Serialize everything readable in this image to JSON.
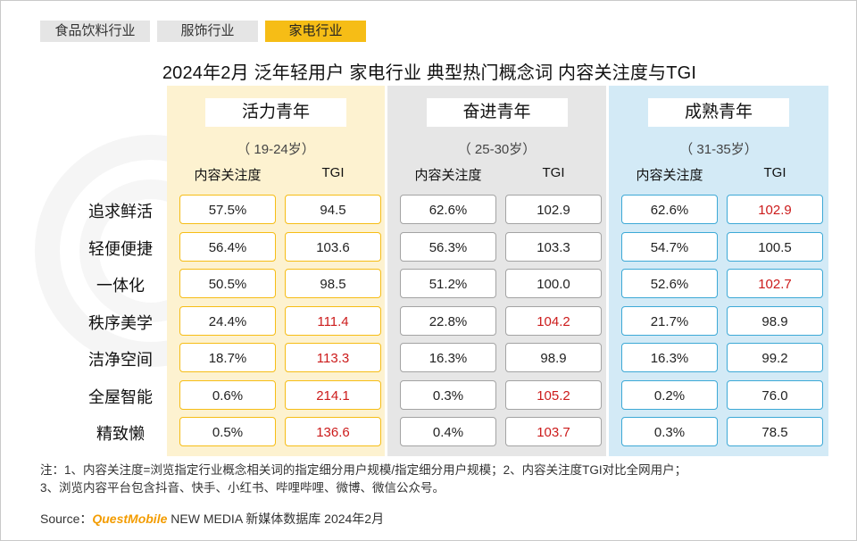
{
  "tabs": [
    {
      "label": "食品饮料行业",
      "active": false
    },
    {
      "label": "服饰行业",
      "active": false
    },
    {
      "label": "家电行业",
      "active": true
    }
  ],
  "colors": {
    "accent": "#f6bd16",
    "youth_bg": "#fdf2d0",
    "striving_bg": "#e6e6e6",
    "mature_bg": "#d3eaf6",
    "highlight": "#cc1b1b"
  },
  "chart_data": {
    "type": "table",
    "title": "2024年2月 泛年轻用户 家电行业 典型热门概念词 内容关注度与TGI",
    "row_labels": [
      "追求鲜活",
      "轻便便捷",
      "一体化",
      "秩序美学",
      "洁净空间",
      "全屋智能",
      "精致懒"
    ],
    "column_headers": [
      "内容关注度",
      "TGI"
    ],
    "groups": [
      {
        "name": "活力青年",
        "age": "（ 19-24岁）",
        "attention": [
          "57.5%",
          "56.4%",
          "50.5%",
          "24.4%",
          "18.7%",
          "0.6%",
          "0.5%"
        ],
        "tgi": [
          "94.5",
          "103.6",
          "98.5",
          "111.4",
          "113.3",
          "214.1",
          "136.6"
        ],
        "tgi_highlight": [
          false,
          false,
          false,
          true,
          true,
          true,
          true
        ]
      },
      {
        "name": "奋进青年",
        "age": "（ 25-30岁）",
        "attention": [
          "62.6%",
          "56.3%",
          "51.2%",
          "22.8%",
          "16.3%",
          "0.3%",
          "0.4%"
        ],
        "tgi": [
          "102.9",
          "103.3",
          "100.0",
          "104.2",
          "98.9",
          "105.2",
          "103.7"
        ],
        "tgi_highlight": [
          false,
          false,
          false,
          true,
          false,
          true,
          true
        ]
      },
      {
        "name": "成熟青年",
        "age": "（ 31-35岁）",
        "attention": [
          "62.6%",
          "54.7%",
          "52.6%",
          "21.7%",
          "16.3%",
          "0.2%",
          "0.3%"
        ],
        "tgi": [
          "102.9",
          "100.5",
          "102.7",
          "98.9",
          "99.2",
          "76.0",
          "78.5"
        ],
        "tgi_highlight": [
          true,
          false,
          true,
          false,
          false,
          false,
          false
        ]
      }
    ]
  },
  "notes": {
    "line1": "注：1、内容关注度=浏览指定行业概念相关词的指定细分用户规模/指定细分用户规模；2、内容关注度TGI对比全网用户；",
    "line2": "3、浏览内容平台包含抖音、快手、小红书、哔哩哔哩、微博、微信公众号。"
  },
  "source": {
    "prefix": "Source：",
    "brand": "QuestMobile",
    "suffix": " NEW MEDIA 新媒体数据库 2024年2月"
  }
}
